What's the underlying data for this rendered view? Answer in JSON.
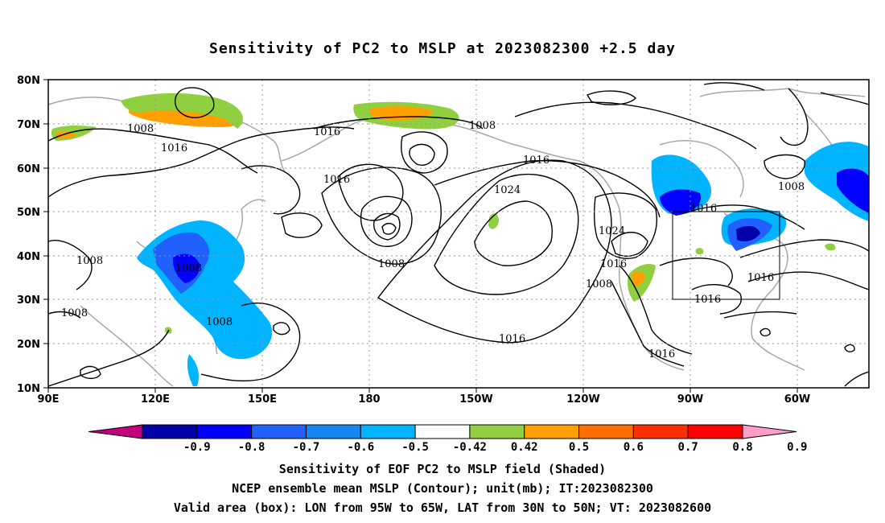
{
  "title": "Sensitivity of PC2 to MSLP at 2023082300 +2.5 day",
  "map": {
    "lat_ticks": [
      "80N",
      "70N",
      "60N",
      "50N",
      "40N",
      "30N",
      "20N",
      "10N"
    ],
    "lon_ticks": [
      "90E",
      "120E",
      "150E",
      "180",
      "150W",
      "120W",
      "90W",
      "60W"
    ],
    "valid_box": {
      "lon_from": "95W",
      "lon_to": "65W",
      "lat_from": "30N",
      "lat_to": "50N"
    },
    "contour_labels": [
      "1008",
      "1016",
      "1016",
      "1016",
      "1008",
      "1016",
      "1024",
      "1016",
      "1008",
      "1008",
      "1008",
      "1008",
      "1008",
      "1008",
      "1024",
      "1016",
      "1008",
      "1016",
      "1016",
      "1016",
      "1008",
      "1016"
    ]
  },
  "colorbar": {
    "labels": [
      "-0.9",
      "-0.8",
      "-0.7",
      "-0.6",
      "-0.5",
      "-0.42",
      "0.42",
      "0.5",
      "0.6",
      "0.7",
      "0.8",
      "0.9"
    ],
    "colors": [
      "#c4007f",
      "#0000a8",
      "#0000ff",
      "#2060ff",
      "#1488f0",
      "#00b4ff",
      "#ffffff",
      "#90d040",
      "#ffa000",
      "#ff6e00",
      "#ff3000",
      "#ff0000",
      "#ff9ec8"
    ]
  },
  "captions": {
    "line1": "Sensitivity of EOF PC2 to MSLP field (Shaded)",
    "line2": "NCEP ensemble mean MSLP (Contour); unit(mb); IT:2023082300",
    "line3": "Valid area (box): LON from 95W to 65W, LAT from 30N to 50N; VT: 2023082600"
  }
}
